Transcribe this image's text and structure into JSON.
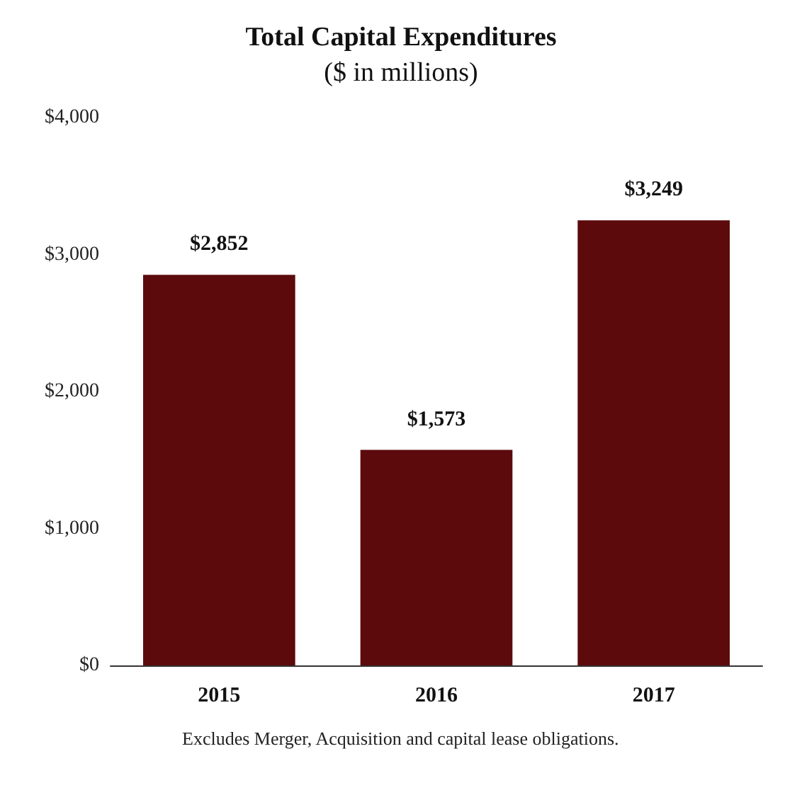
{
  "chart_data": {
    "type": "bar",
    "title": "Total Capital Expenditures",
    "subtitle": "($ in millions)",
    "categories": [
      "2015",
      "2016",
      "2017"
    ],
    "values": [
      2852,
      1573,
      3249
    ],
    "color": "#5c0a0c",
    "value_labels": [
      "$2,852",
      "$1,573",
      "$3,249"
    ],
    "ylim": [
      0,
      4000
    ],
    "yticks": [
      {
        "value": 0,
        "label": "$0"
      },
      {
        "value": 1000,
        "label": "$1,000"
      },
      {
        "value": 2000,
        "label": "$2,000"
      },
      {
        "value": 3000,
        "label": "$3,000"
      },
      {
        "value": 4000,
        "label": "$4,000"
      }
    ],
    "grid": false,
    "annotations": [
      "Excludes Merger, Acquisition and capital lease obligations."
    ]
  }
}
